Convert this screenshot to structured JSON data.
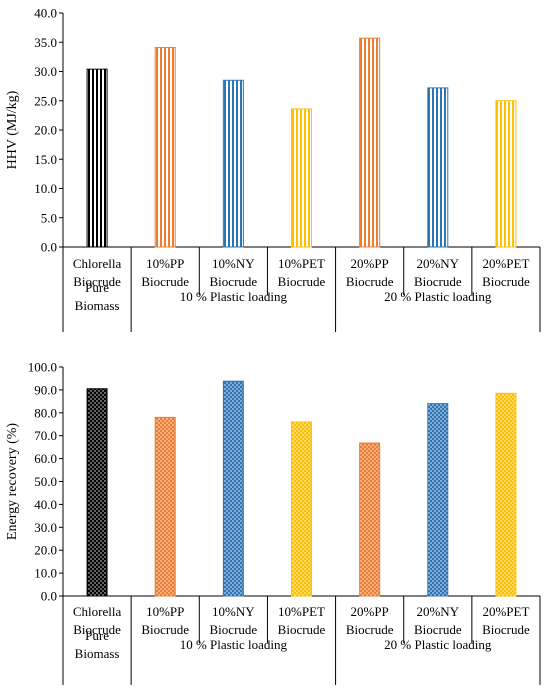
{
  "chart_data": [
    {
      "type": "bar",
      "ylabel": "HHV (MJ/kg)",
      "ylim": [
        0,
        40
      ],
      "yticks": [
        "0.0",
        "5.0",
        "10.0",
        "15.0",
        "20.0",
        "25.0",
        "30.0",
        "35.0",
        "40.0"
      ],
      "grid": false,
      "pattern": "vertical-stripes",
      "categories": [
        [
          "Chlorella",
          "Biocrude"
        ],
        [
          "10%PP",
          "Biocrude"
        ],
        [
          "10%NY",
          "Biocrude"
        ],
        [
          "10%PET",
          "Biocrude"
        ],
        [
          "20%PP",
          "Biocrude"
        ],
        [
          "20%NY",
          "Biocrude"
        ],
        [
          "20%PET",
          "Biocrude"
        ]
      ],
      "groups": [
        {
          "label": [
            "Pure",
            "Biomass"
          ],
          "span": [
            0,
            0
          ]
        },
        {
          "label": [
            "10 % Plastic loading"
          ],
          "span": [
            1,
            3
          ]
        },
        {
          "label": [
            "20 % Plastic loading"
          ],
          "span": [
            4,
            6
          ]
        }
      ],
      "values": [
        30.4,
        34.1,
        28.5,
        23.6,
        35.7,
        27.2,
        25.0
      ],
      "colors": [
        "#000000",
        "#ED7D31",
        "#2E75B6",
        "#FFC000",
        "#ED7D31",
        "#2E75B6",
        "#FFC000"
      ]
    },
    {
      "type": "bar",
      "ylabel": "Energy recovery (%)",
      "ylim": [
        0,
        100
      ],
      "yticks": [
        "0.0",
        "10.0",
        "20.0",
        "30.0",
        "40.0",
        "50.0",
        "60.0",
        "70.0",
        "80.0",
        "90.0",
        "100.0"
      ],
      "grid": false,
      "pattern": "dots",
      "categories": [
        [
          "Chlorella",
          "Biocrude"
        ],
        [
          "10%PP",
          "Biocrude"
        ],
        [
          "10%NY",
          "Biocrude"
        ],
        [
          "10%PET",
          "Biocrude"
        ],
        [
          "20%PP",
          "Biocrude"
        ],
        [
          "20%NY",
          "Biocrude"
        ],
        [
          "20%PET",
          "Biocrude"
        ]
      ],
      "groups": [
        {
          "label": [
            "Pure",
            "Biomass"
          ],
          "span": [
            0,
            0
          ]
        },
        {
          "label": [
            "10 % Plastic loading"
          ],
          "span": [
            1,
            3
          ]
        },
        {
          "label": [
            "20 % Plastic loading"
          ],
          "span": [
            4,
            6
          ]
        }
      ],
      "values": [
        90.5,
        78.0,
        93.8,
        76.0,
        66.8,
        84.0,
        88.5
      ],
      "colors": [
        "#000000",
        "#ED7D31",
        "#2E75B6",
        "#FFC000",
        "#ED7D31",
        "#2E75B6",
        "#FFC000"
      ]
    }
  ]
}
